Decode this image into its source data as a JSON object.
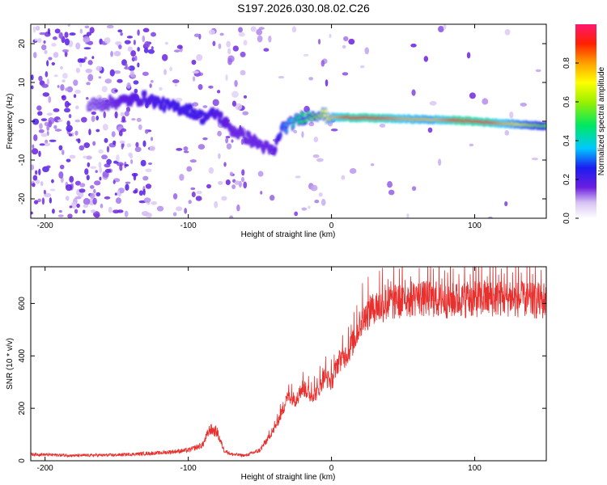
{
  "title": "S197.2026.030.08.02.C26",
  "chart_data": [
    {
      "type": "heatmap",
      "xlabel": "Height of straight line (km)",
      "ylabel": "Frequency (Hz)",
      "xlim": [
        -210,
        150
      ],
      "ylim": [
        -25,
        25
      ],
      "x_ticks": [
        "-200",
        "-100",
        "0",
        "100"
      ],
      "y_ticks": [
        "-20",
        "-10",
        "0",
        "10",
        "20"
      ],
      "colorbar": {
        "label": "Normalized spectral amplitude",
        "range": [
          0,
          1
        ],
        "ticks": [
          "0.0",
          "0.2",
          "0.4",
          "0.6",
          "0.8"
        ]
      },
      "ridge": {
        "x": [
          -170,
          -150,
          -130,
          -115,
          -100,
          -90,
          -80,
          -70,
          -60,
          -50,
          -40,
          -35,
          -30,
          -20,
          -10,
          0,
          10,
          30,
          50,
          70,
          90,
          110,
          130,
          150
        ],
        "freq": [
          4,
          5,
          6,
          4,
          3,
          1,
          2,
          -2,
          -4,
          -6,
          -8,
          -2,
          -1,
          1,
          2,
          1,
          1,
          0.8,
          0.6,
          0.4,
          0.2,
          -0.3,
          -0.8,
          -1.2
        ],
        "amplitude": [
          0.1,
          0.15,
          0.2,
          0.25,
          0.25,
          0.25,
          0.2,
          0.15,
          0.15,
          0.15,
          0.15,
          0.3,
          0.35,
          0.5,
          0.6,
          0.75,
          0.9,
          0.92,
          0.8,
          0.75,
          0.95,
          0.9,
          0.7,
          0.55
        ]
      }
    },
    {
      "type": "line",
      "xlabel": "Height of straight line (km)",
      "ylabel": "SNR (10 * v/v)",
      "xlim": [
        -210,
        150
      ],
      "ylim": [
        0,
        740
      ],
      "x_ticks": [
        "-200",
        "-100",
        "0",
        "100"
      ],
      "y_ticks": [
        "0",
        "200",
        "400",
        "600"
      ],
      "series": [
        {
          "name": "SNR",
          "color": "#e8302e",
          "x": [
            -210,
            -180,
            -150,
            -120,
            -100,
            -90,
            -85,
            -80,
            -75,
            -70,
            -60,
            -50,
            -45,
            -40,
            -35,
            -30,
            -25,
            -20,
            -15,
            -10,
            -5,
            0,
            5,
            10,
            15,
            20,
            25,
            30,
            40,
            60,
            80,
            100,
            120,
            150
          ],
          "y": [
            25,
            20,
            22,
            30,
            40,
            60,
            120,
            110,
            40,
            25,
            20,
            40,
            80,
            120,
            180,
            250,
            230,
            280,
            250,
            260,
            320,
            300,
            380,
            400,
            450,
            520,
            560,
            580,
            600,
            620,
            610,
            615,
            620,
            605
          ]
        }
      ]
    }
  ]
}
